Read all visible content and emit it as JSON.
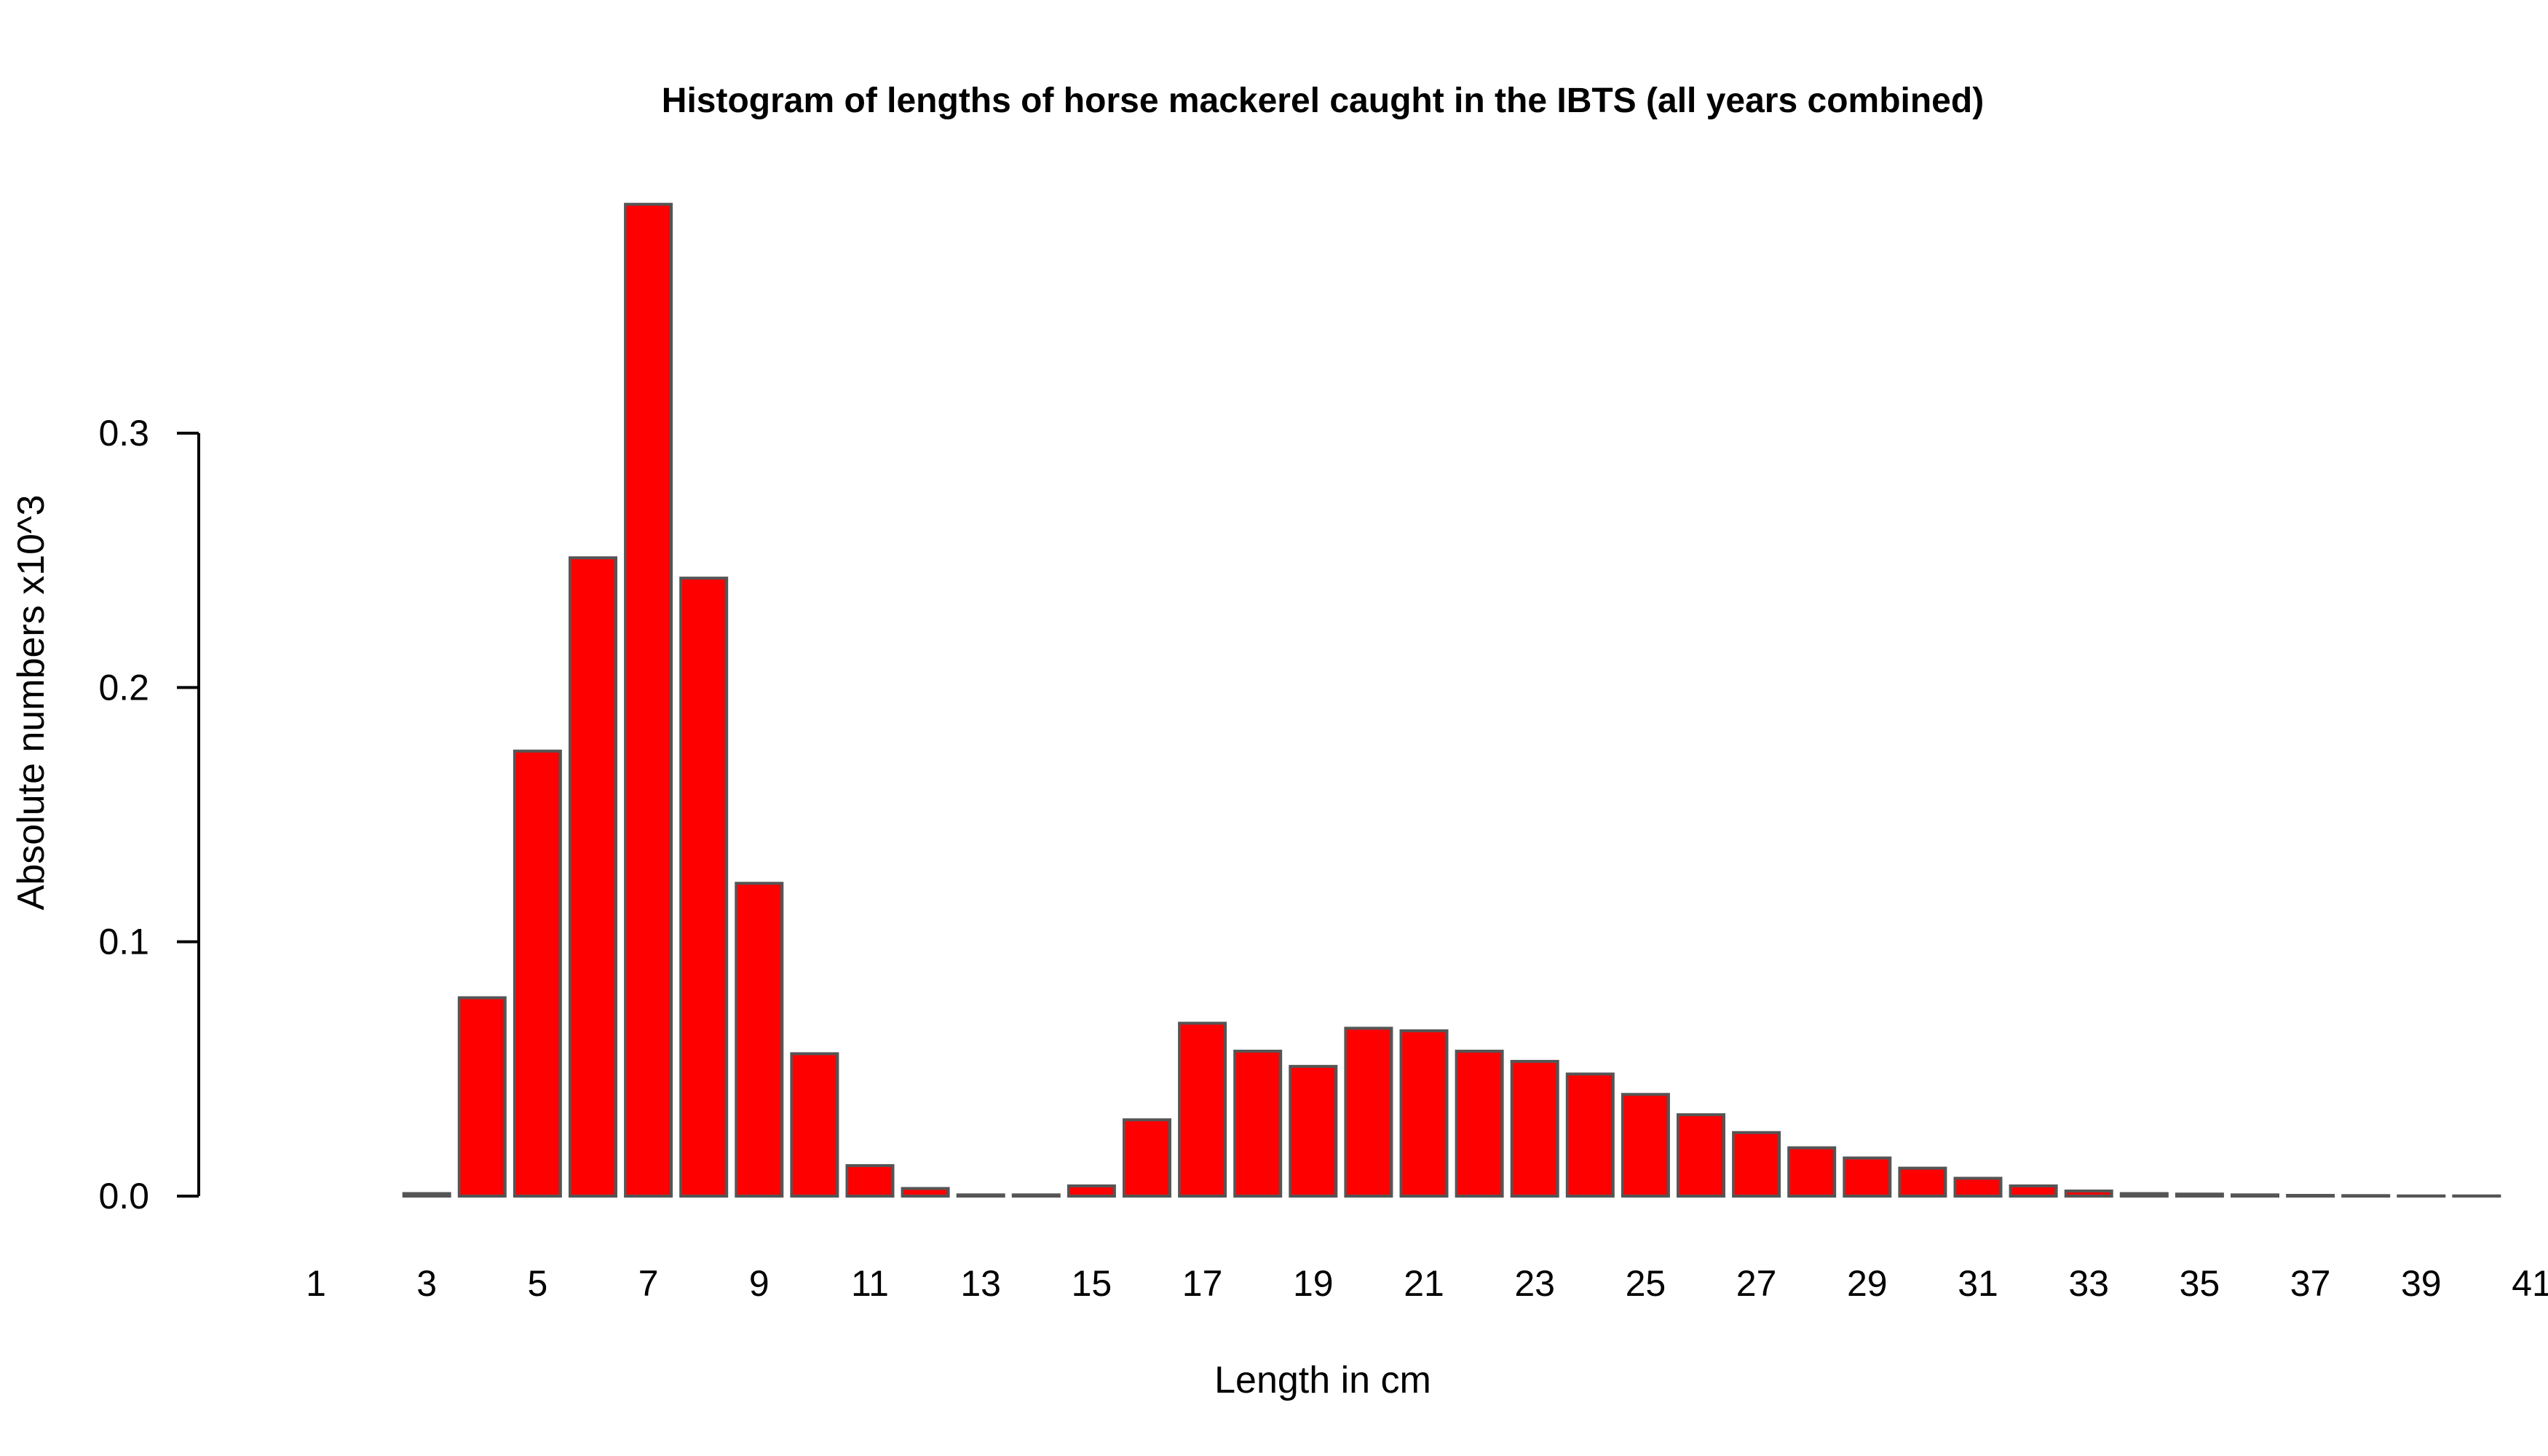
{
  "chart_data": {
    "type": "bar",
    "title": "Histogram of lengths of horse mackerel caught in the IBTS (all years combined)",
    "xlabel": "Length in cm",
    "ylabel": "Absolute numbers x10^3",
    "categories": [
      "1",
      "2",
      "3",
      "4",
      "5",
      "6",
      "7",
      "8",
      "9",
      "10",
      "11",
      "12",
      "13",
      "14",
      "15",
      "16",
      "17",
      "18",
      "19",
      "20",
      "21",
      "22",
      "23",
      "24",
      "25",
      "26",
      "27",
      "28",
      "29",
      "30",
      "31",
      "32",
      "33",
      "34",
      "35",
      "36",
      "37",
      "38",
      "39",
      "40",
      "41"
    ],
    "x_tick_labels": [
      "1",
      "3",
      "5",
      "7",
      "9",
      "11",
      "13",
      "15",
      "17",
      "19",
      "21",
      "23",
      "25",
      "27",
      "29",
      "31",
      "33",
      "35",
      "37",
      "39",
      "41"
    ],
    "values": [
      0,
      0,
      0.001,
      0.078,
      0.175,
      0.251,
      0.39,
      0.243,
      0.123,
      0.056,
      0.012,
      0.003,
      0.0005,
      0.0005,
      0.004,
      0.03,
      0.068,
      0.057,
      0.051,
      0.066,
      0.065,
      0.057,
      0.053,
      0.048,
      0.04,
      0.032,
      0.025,
      0.019,
      0.015,
      0.011,
      0.007,
      0.004,
      0.002,
      0.001,
      0.0008,
      0.0005,
      0.0003,
      0.0002,
      0.0001,
      0.0001,
      0
    ],
    "y_ticks": [
      0.0,
      0.1,
      0.2,
      0.3
    ],
    "y_tick_labels": [
      "0.0",
      "0.1",
      "0.2",
      "0.3"
    ],
    "ylim": [
      0,
      0.39
    ],
    "grid": false,
    "colors": {
      "bar_fill": "#ff0000",
      "bar_border": "#555555"
    }
  }
}
